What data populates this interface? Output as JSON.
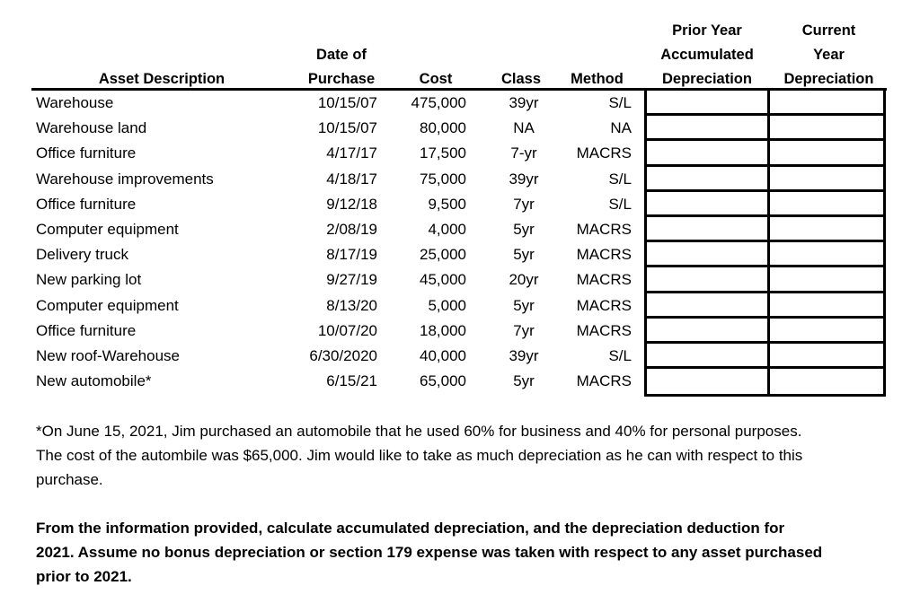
{
  "headers": {
    "asset": "Asset Description",
    "date_1": "Date of",
    "date_2": "Purchase",
    "cost": "Cost",
    "class": "Class",
    "method": "Method",
    "prior_1": "Prior Year",
    "prior_2": "Accumulated",
    "prior_3": "Depreciation",
    "current_1": "Current",
    "current_2": "Year",
    "current_3": "Depreciation"
  },
  "rows": [
    {
      "asset": "Warehouse",
      "date": "10/15/07",
      "cost": "475,000",
      "class": "39yr",
      "method": "S/L",
      "prior": "",
      "current": ""
    },
    {
      "asset": "Warehouse land",
      "date": "10/15/07",
      "cost": "80,000",
      "class": "NA",
      "method": "NA",
      "prior": "",
      "current": ""
    },
    {
      "asset": "Office furniture",
      "date": "4/17/17",
      "cost": "17,500",
      "class": "7-yr",
      "method": "MACRS",
      "prior": "",
      "current": ""
    },
    {
      "asset": "Warehouse improvements",
      "date": "4/18/17",
      "cost": "75,000",
      "class": "39yr",
      "method": "S/L",
      "prior": "",
      "current": ""
    },
    {
      "asset": "Office furniture",
      "date": "9/12/18",
      "cost": "9,500",
      "class": "7yr",
      "method": "S/L",
      "prior": "",
      "current": ""
    },
    {
      "asset": "Computer equipment",
      "date": "2/08/19",
      "cost": "4,000",
      "class": "5yr",
      "method": "MACRS",
      "prior": "",
      "current": ""
    },
    {
      "asset": "Delivery truck",
      "date": "8/17/19",
      "cost": "25,000",
      "class": "5yr",
      "method": "MACRS",
      "prior": "",
      "current": ""
    },
    {
      "asset": "New parking lot",
      "date": "9/27/19",
      "cost": "45,000",
      "class": "20yr",
      "method": "MACRS",
      "prior": "",
      "current": ""
    },
    {
      "asset": "Computer equipment",
      "date": "8/13/20",
      "cost": "5,000",
      "class": "5yr",
      "method": "MACRS",
      "prior": "",
      "current": ""
    },
    {
      "asset": "Office furniture",
      "date": "10/07/20",
      "cost": "18,000",
      "class": "7yr",
      "method": "MACRS",
      "prior": "",
      "current": ""
    },
    {
      "asset": "New roof-Warehouse",
      "date": "6/30/2020",
      "cost": "40,000",
      "class": "39yr",
      "method": "S/L",
      "prior": "",
      "current": ""
    },
    {
      "asset": "New automobile*",
      "date": "6/15/21",
      "cost": "65,000",
      "class": "5yr",
      "method": "MACRS",
      "prior": "",
      "current": ""
    }
  ],
  "footnote": "*On June 15, 2021, Jim purchased an automobile that he used 60% for business and 40% for personal purposes.  The cost of the autombile was $65,000.  Jim would like to take as much depreciation as he can with respect to this purchase.",
  "instructions": "From the information provided, calculate accumulated depreciation, and the depreciation deduction for 2021.  Assume no bonus depreciation or section 179 expense was taken with respect to any asset purchased prior to 2021."
}
